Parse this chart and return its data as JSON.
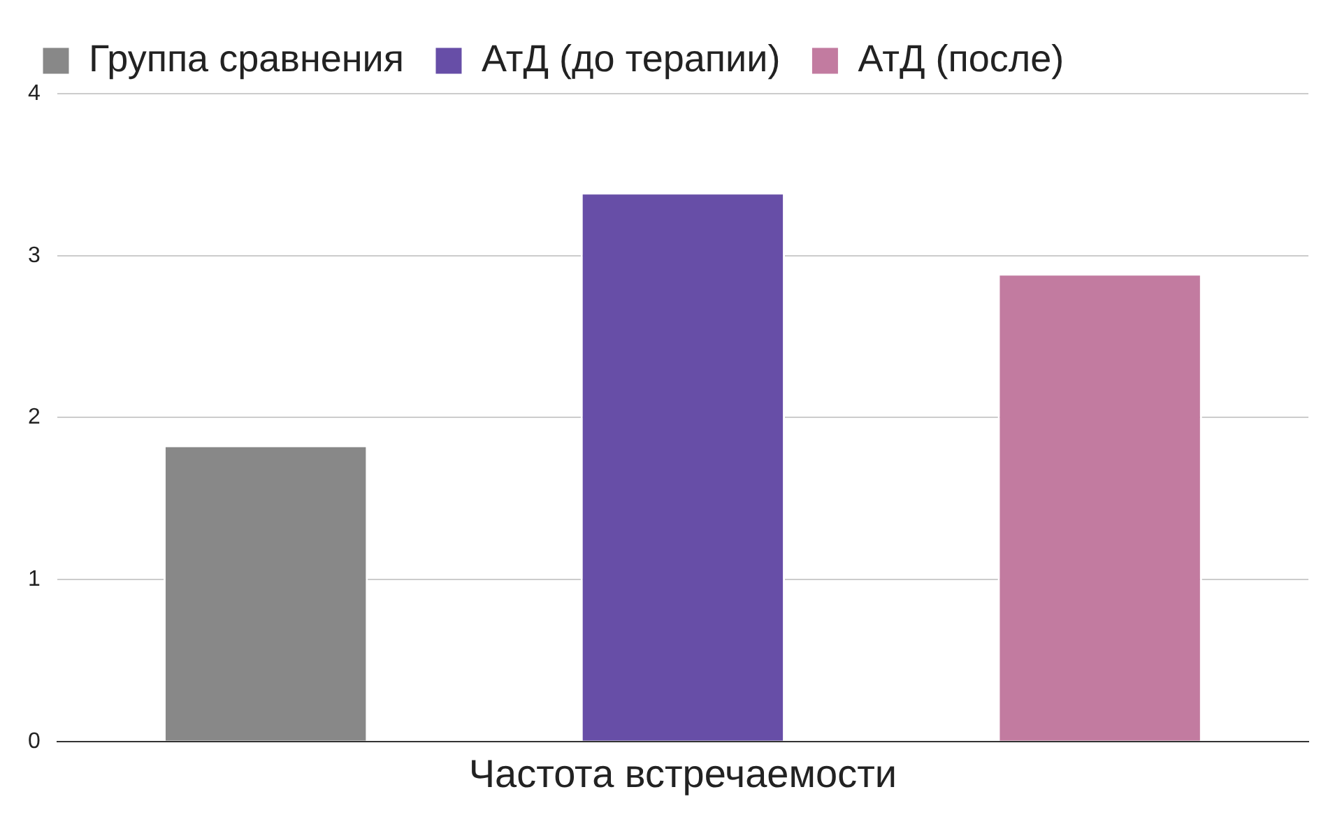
{
  "chart_data": {
    "type": "bar",
    "categories": [
      "Частота встречаемости"
    ],
    "series": [
      {
        "name": "Группа сравнения",
        "color": "#888888",
        "values": [
          1.83
        ]
      },
      {
        "name": "АтД (до терапии)",
        "color": "#674ea7",
        "values": [
          3.39
        ]
      },
      {
        "name": "АтД (после)",
        "color": "#c27ba0",
        "values": [
          2.89
        ]
      }
    ],
    "ylim": [
      0,
      4
    ],
    "yticks": [
      0,
      1,
      2,
      3,
      4
    ],
    "grid": "y",
    "legend": "top"
  }
}
